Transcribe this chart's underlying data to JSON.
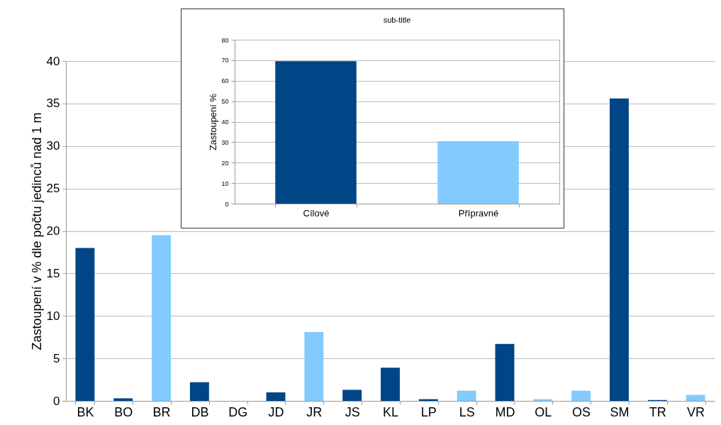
{
  "chart_data": [
    {
      "type": "bar",
      "ylabel": "Zastoupení v % dle počtu jedinců nad 1 m",
      "categories": [
        "BK",
        "BO",
        "BR",
        "DB",
        "DG",
        "JD",
        "JR",
        "JS",
        "KL",
        "LP",
        "LS",
        "MD",
        "OL",
        "OS",
        "SM",
        "TR",
        "VR"
      ],
      "values": [
        18.0,
        0.3,
        19.5,
        2.2,
        0,
        1.0,
        8.1,
        1.3,
        3.9,
        0.2,
        1.2,
        6.7,
        0.2,
        1.2,
        35.6,
        0.1,
        0.7
      ],
      "colors": [
        "#004586",
        "#004586",
        "#83caff",
        "#004586",
        "#004586",
        "#004586",
        "#83caff",
        "#004586",
        "#004586",
        "#004586",
        "#83caff",
        "#004586",
        "#83caff",
        "#83caff",
        "#004586",
        "#004586",
        "#83caff"
      ],
      "ylim": [
        0,
        40
      ],
      "yticks": [
        0,
        5,
        10,
        15,
        20,
        25,
        30,
        35,
        40
      ],
      "grid": "y"
    },
    {
      "type": "bar",
      "title": "sub-title",
      "ylabel": "Zastoupení %",
      "categories": [
        "Cílové",
        "Přípravné"
      ],
      "values": [
        69.5,
        30.5
      ],
      "colors": [
        "#004586",
        "#83caff"
      ],
      "ylim": [
        0,
        80
      ],
      "yticks": [
        0,
        10,
        20,
        30,
        40,
        50,
        60,
        70,
        80
      ],
      "grid": "y"
    }
  ]
}
